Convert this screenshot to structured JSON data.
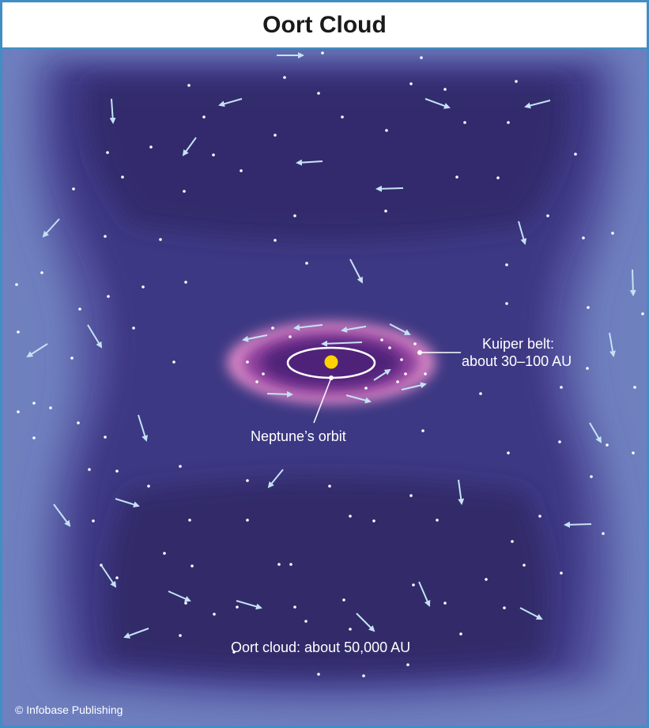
{
  "title": "Oort Cloud",
  "labels": {
    "kuiper_belt_line1": "Kuiper belt:",
    "kuiper_belt_line2": "about 30–100 AU",
    "neptune_orbit": "Neptune’s orbit",
    "oort_cloud": "Oort cloud: about 50,000 AU"
  },
  "credit": "© Infobase Publishing",
  "colors": {
    "frame_border": "#3f8fc4",
    "background": "#6f80bf",
    "cloud_dark": "#30296a",
    "kuiper_glow": "#d987c6",
    "sun": "#ffd200",
    "arrows": "#c5e2f5",
    "stars": "#ffffff"
  }
}
